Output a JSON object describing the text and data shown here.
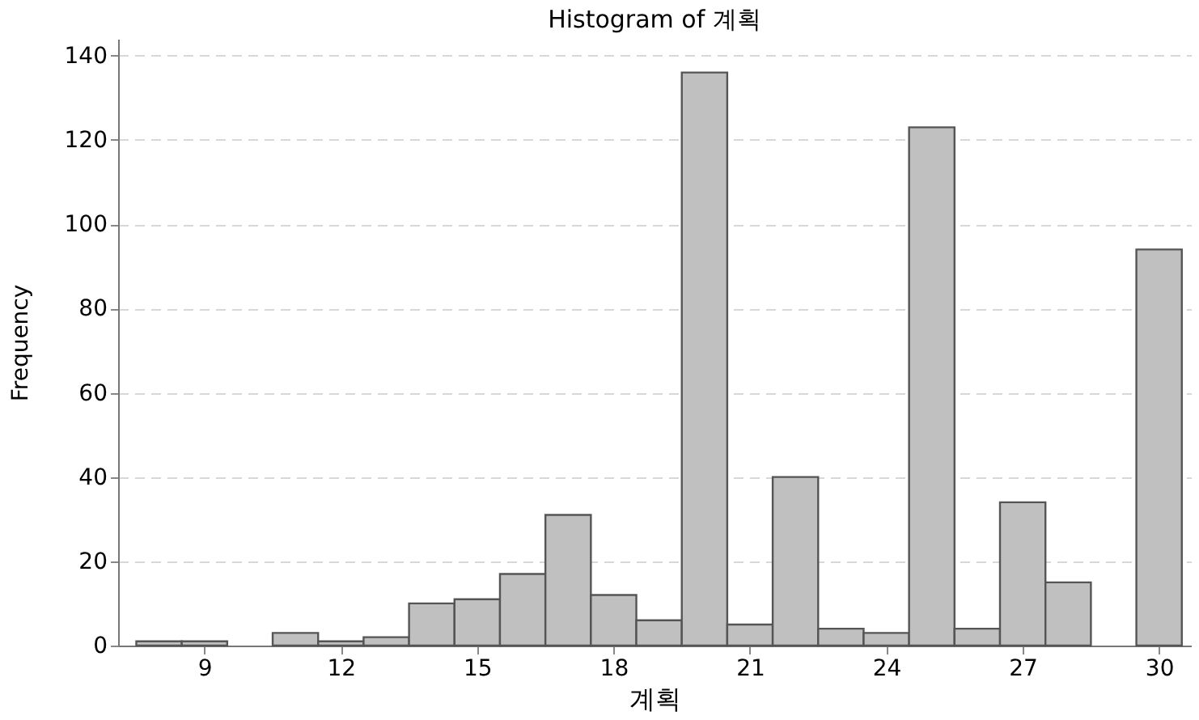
{
  "chart_data": {
    "type": "histogram",
    "title": "Histogram of 계획",
    "xlabel": "계획",
    "ylabel": "Frequency",
    "bins": [
      7.5,
      8.5,
      9.5,
      10.5,
      11.5,
      12.5,
      13.5,
      14.5,
      15.5,
      16.5,
      17.5,
      18.5,
      19.5,
      20.5,
      21.5,
      22.5,
      23.5,
      24.5,
      25.5,
      26.5,
      27.5,
      28.5,
      29.5,
      30.5
    ],
    "values": [
      1,
      1,
      0,
      3,
      1,
      2,
      10,
      11,
      17,
      31,
      12,
      6,
      136,
      5,
      40,
      4,
      3,
      123,
      4,
      34,
      15,
      0,
      94
    ],
    "color": "#c0c0c0",
    "xlim": [
      7.1,
      30.7
    ],
    "xticks": [
      9,
      12,
      15,
      18,
      21,
      24,
      27,
      30
    ],
    "ylim": [
      0,
      144
    ],
    "yticks": [
      0,
      20,
      40,
      60,
      80,
      100,
      120,
      140
    ],
    "grid": "y"
  }
}
